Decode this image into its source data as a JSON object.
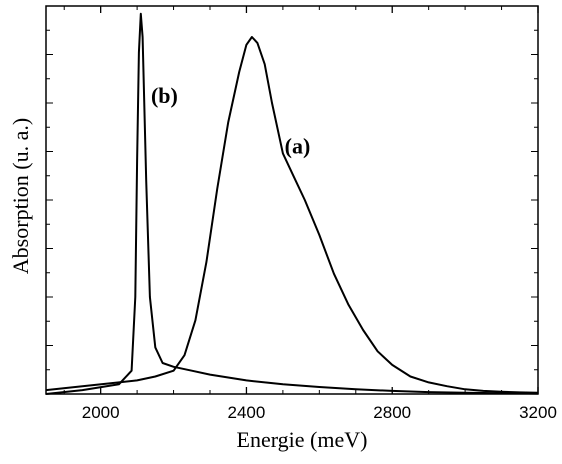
{
  "chart_data": {
    "type": "line",
    "title": "",
    "xlabel": "Energie (meV)",
    "ylabel": "Absorption (u. a.)",
    "xlim": [
      1850,
      3200
    ],
    "ylim": [
      0,
      1.0
    ],
    "x_ticks": [
      2000,
      2400,
      2800,
      3200
    ],
    "x_tick_labels": [
      "2000",
      "2400",
      "2800",
      "3200"
    ],
    "y_tick_labels_shown": false,
    "grid": false,
    "series": [
      {
        "name": "(a)",
        "x": [
          1850,
          1950,
          2050,
          2100,
          2150,
          2200,
          2230,
          2260,
          2290,
          2320,
          2350,
          2380,
          2400,
          2415,
          2430,
          2450,
          2470,
          2500,
          2530,
          2560,
          2600,
          2640,
          2680,
          2720,
          2760,
          2800,
          2850,
          2900,
          2950,
          3000,
          3050,
          3100,
          3150,
          3200
        ],
        "y": [
          0.01,
          0.02,
          0.03,
          0.035,
          0.045,
          0.06,
          0.1,
          0.19,
          0.34,
          0.53,
          0.7,
          0.83,
          0.9,
          0.92,
          0.905,
          0.85,
          0.75,
          0.62,
          0.56,
          0.5,
          0.41,
          0.31,
          0.23,
          0.165,
          0.11,
          0.075,
          0.045,
          0.03,
          0.02,
          0.012,
          0.008,
          0.006,
          0.004,
          0.003
        ]
      },
      {
        "name": "(b)",
        "x": [
          1850,
          1950,
          2050,
          2085,
          2095,
          2100,
          2105,
          2110,
          2115,
          2125,
          2135,
          2150,
          2170,
          2200,
          2250,
          2300,
          2400,
          2500,
          2600,
          2700,
          2800,
          2900,
          3000,
          3100,
          3200
        ],
        "y": [
          0.0,
          0.01,
          0.025,
          0.06,
          0.25,
          0.6,
          0.88,
          0.98,
          0.92,
          0.55,
          0.25,
          0.12,
          0.08,
          0.07,
          0.06,
          0.05,
          0.035,
          0.025,
          0.018,
          0.012,
          0.008,
          0.005,
          0.003,
          0.002,
          0.001
        ]
      }
    ],
    "annotations": [
      {
        "text": "(a)",
        "x": 2540,
        "y": 0.62
      },
      {
        "text": "(b)",
        "x": 2175,
        "y": 0.75
      }
    ]
  }
}
